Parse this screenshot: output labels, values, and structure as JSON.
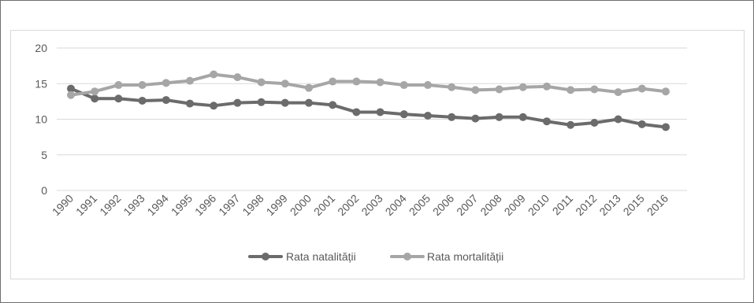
{
  "chart_data": {
    "type": "line",
    "title": "",
    "xlabel": "",
    "ylabel": "",
    "categories": [
      "1990",
      "1991",
      "1992",
      "1993",
      "1994",
      "1995",
      "1996",
      "1997",
      "1998",
      "1999",
      "2000",
      "2001",
      "2002",
      "2003",
      "2004",
      "2005",
      "2006",
      "2007",
      "2008",
      "2009",
      "2010",
      "2011",
      "2012",
      "2013",
      "2015",
      "2016"
    ],
    "ylim": [
      0,
      20
    ],
    "yticks": [
      0,
      5,
      10,
      15,
      20
    ],
    "grid": true,
    "legend_position": "bottom",
    "series": [
      {
        "name": "Rata natalității",
        "color": "#6b6b6b",
        "values": [
          14.3,
          12.9,
          12.9,
          12.6,
          12.7,
          12.2,
          11.9,
          12.3,
          12.4,
          12.3,
          12.3,
          12.0,
          11.0,
          11.0,
          10.7,
          10.5,
          10.3,
          10.1,
          10.3,
          10.3,
          9.7,
          9.2,
          9.5,
          10.0,
          9.3,
          8.9
        ]
      },
      {
        "name": "Rata mortalității",
        "color": "#a6a6a6",
        "values": [
          13.4,
          13.9,
          14.8,
          14.8,
          15.1,
          15.4,
          16.3,
          15.9,
          15.2,
          15.0,
          14.4,
          15.3,
          15.3,
          15.2,
          14.8,
          14.8,
          14.5,
          14.1,
          14.2,
          14.5,
          14.6,
          14.1,
          14.2,
          13.8,
          14.3,
          13.9
        ]
      }
    ]
  }
}
